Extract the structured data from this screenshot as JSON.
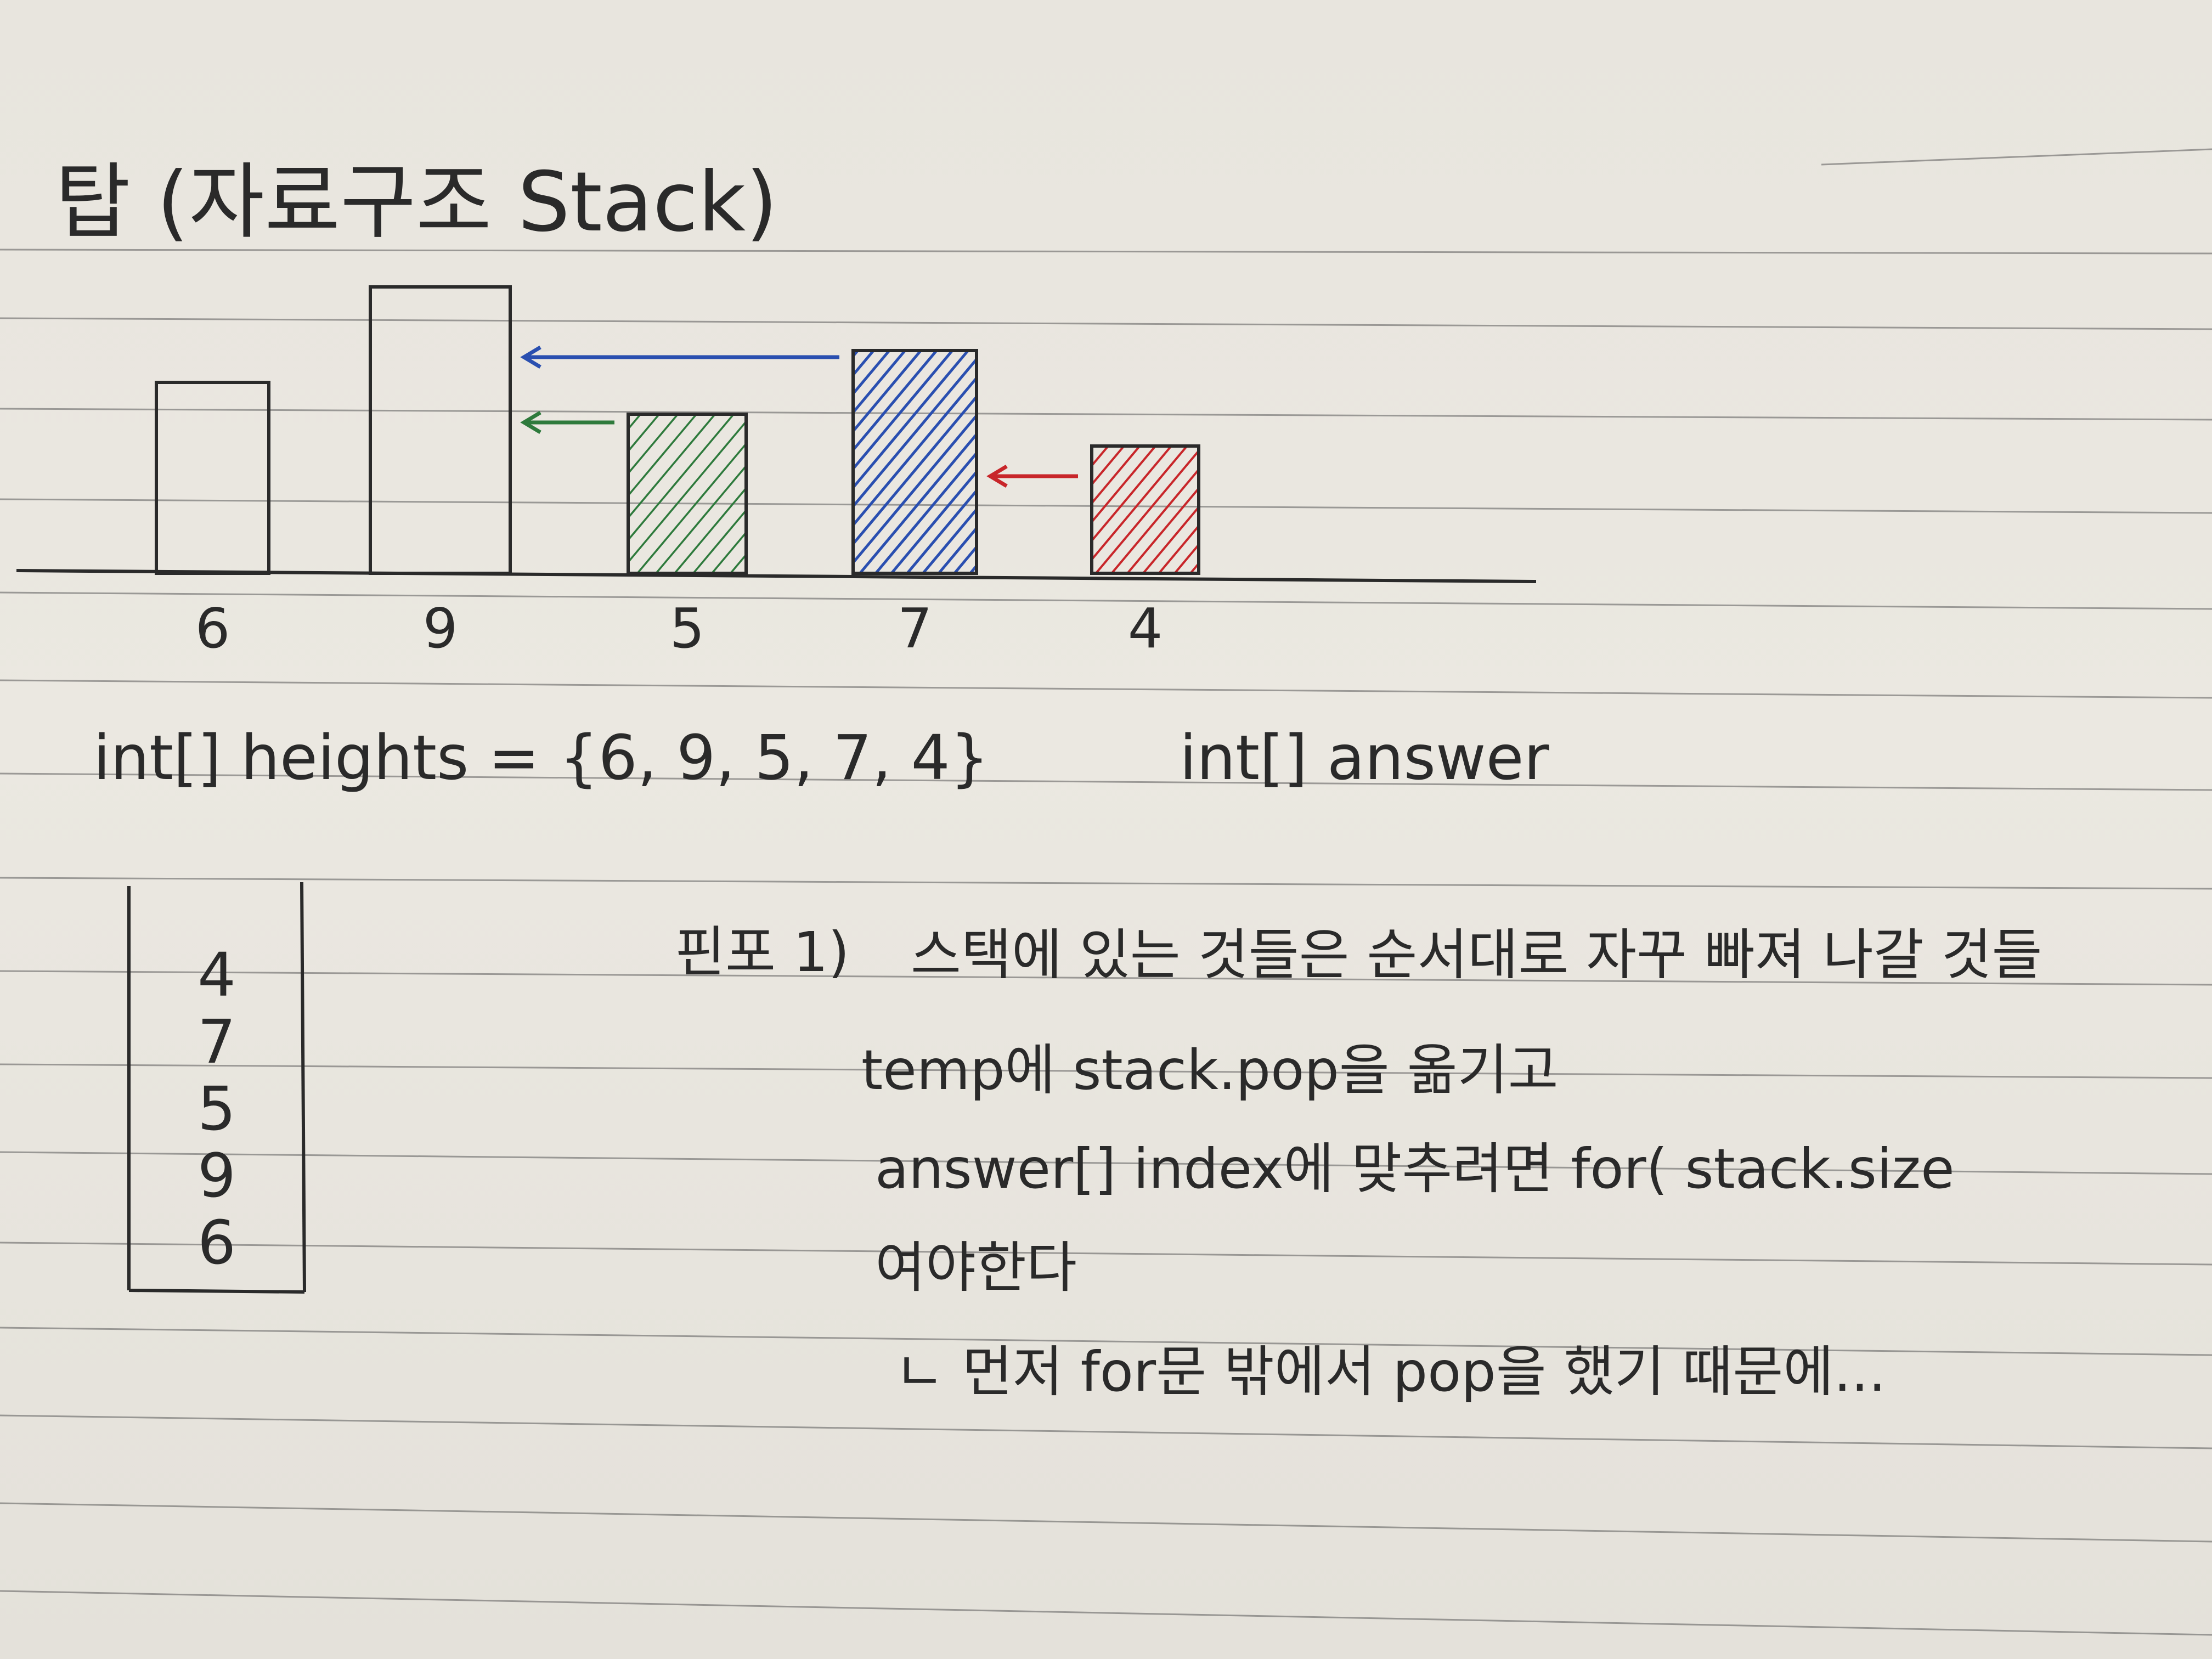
{
  "note": {
    "title": "탑 (자료구조 Stack)",
    "code_heights": "int[] heights = {6, 9, 5, 7, 4}",
    "code_answer": "int[] answer",
    "point_label": "핀포 1)",
    "lines": [
      "스택에 있는 것들은 순서대로 자꾸 빠져 나갈 것들",
      "temp에 stack.pop을 옮기고",
      "answer[] index에 맞추려면 for( stack.size",
      "여야한다",
      "ㄴ 먼저 for문 밖에서 pop을 했기 때문에..."
    ],
    "stack_values": [
      "4",
      "7",
      "5",
      "9",
      "6"
    ]
  },
  "chart_data": {
    "type": "bar",
    "title": "",
    "categories": [
      "6",
      "9",
      "5",
      "7",
      "4"
    ],
    "values": [
      6,
      9,
      5,
      7,
      4
    ],
    "fills": [
      "none",
      "none",
      "#2e7a3c",
      "#2a4fb0",
      "#c8262a"
    ],
    "arrows": [
      {
        "from": 3,
        "to": 1,
        "color": "#2a4fb0"
      },
      {
        "from": 2,
        "to": 1,
        "color": "#2e7a3c"
      },
      {
        "from": 4,
        "to": 3,
        "color": "#c8262a"
      }
    ]
  }
}
